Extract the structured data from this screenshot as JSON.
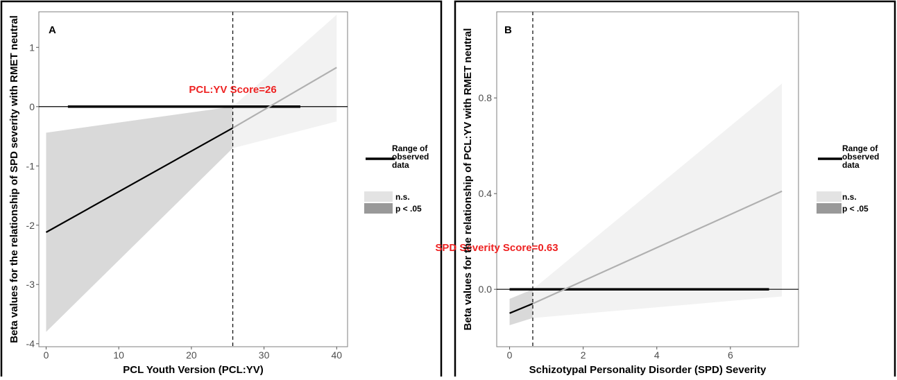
{
  "colors": {
    "sig_band": "#d9d9d9",
    "ns_band": "#f2f2f2",
    "sig_line": "#000000",
    "ns_line": "#b0b0b0",
    "annotation": "#ee2222",
    "legend_sig": "#999999",
    "legend_ns": "#e3e3e3"
  },
  "chart_data": [
    {
      "type": "line",
      "panel_label": "A",
      "xlabel": "PCL Youth Version (PCL:YV)",
      "ylabel": "Beta values for the relationship of SPD severity with RMET neutral",
      "xlim": [
        -1,
        41.5
      ],
      "ylim": [
        -4.05,
        1.6
      ],
      "x_ticks": [
        0,
        10,
        20,
        30,
        40
      ],
      "x_tick_labels": [
        "0",
        "10",
        "20",
        "30",
        "40"
      ],
      "y_ticks": [
        -4,
        -3,
        -2,
        -1,
        0,
        1
      ],
      "y_tick_labels": [
        "-4",
        "-3",
        "-2",
        "-1",
        "0",
        "1"
      ],
      "grid": false,
      "zero_line": true,
      "threshold": {
        "x": 25.7,
        "label": "PCL:YV Score=26"
      },
      "observed_range": [
        3,
        35
      ],
      "series": [
        {
          "x": [
            0,
            25.7
          ],
          "y": [
            -2.12,
            -0.36
          ],
          "lower": [
            -3.8,
            -0.7
          ],
          "upper": [
            -0.44,
            0.0
          ],
          "significance": "p < .05"
        },
        {
          "x": [
            25.7,
            40
          ],
          "y": [
            -0.36,
            0.66
          ],
          "lower": [
            -0.7,
            -0.25
          ],
          "upper": [
            0.0,
            1.55
          ],
          "significance": "n.s."
        }
      ],
      "legend": {
        "placement": "right",
        "range_label_lines": [
          "Range of",
          "observed",
          "data"
        ],
        "items": [
          {
            "label": "n.s."
          },
          {
            "label": "p < .05"
          }
        ]
      }
    },
    {
      "type": "line",
      "panel_label": "B",
      "xlabel": "Schizotypal Personality Disorder (SPD) Severity",
      "ylabel": "Beta values for the relationship of PCL:YV with RMET neutral",
      "xlim": [
        -0.35,
        7.85
      ],
      "ylim": [
        -0.24,
        1.16
      ],
      "x_ticks": [
        0,
        2,
        4,
        6
      ],
      "x_tick_labels": [
        "0",
        "2",
        "4",
        "6"
      ],
      "y_ticks": [
        0.0,
        0.4,
        0.8
      ],
      "y_tick_labels": [
        "0.0",
        "0.4",
        "0.8"
      ],
      "grid": false,
      "zero_line": true,
      "threshold": {
        "x": 0.63,
        "label": "SPD Severity Score=0.63"
      },
      "observed_range": [
        0,
        7.05
      ],
      "series": [
        {
          "x": [
            0,
            0.63
          ],
          "y": [
            -0.1,
            -0.06
          ],
          "lower": [
            -0.15,
            -0.12
          ],
          "upper": [
            -0.04,
            0.0
          ],
          "significance": "p < .05"
        },
        {
          "x": [
            0.63,
            7.4
          ],
          "y": [
            -0.06,
            0.41
          ],
          "lower": [
            -0.12,
            -0.03
          ],
          "upper": [
            0.0,
            0.86
          ],
          "significance": "n.s."
        }
      ],
      "legend": {
        "placement": "right",
        "range_label_lines": [
          "Range of",
          "observed",
          "data"
        ],
        "items": [
          {
            "label": "n.s."
          },
          {
            "label": "p < .05"
          }
        ]
      }
    }
  ]
}
